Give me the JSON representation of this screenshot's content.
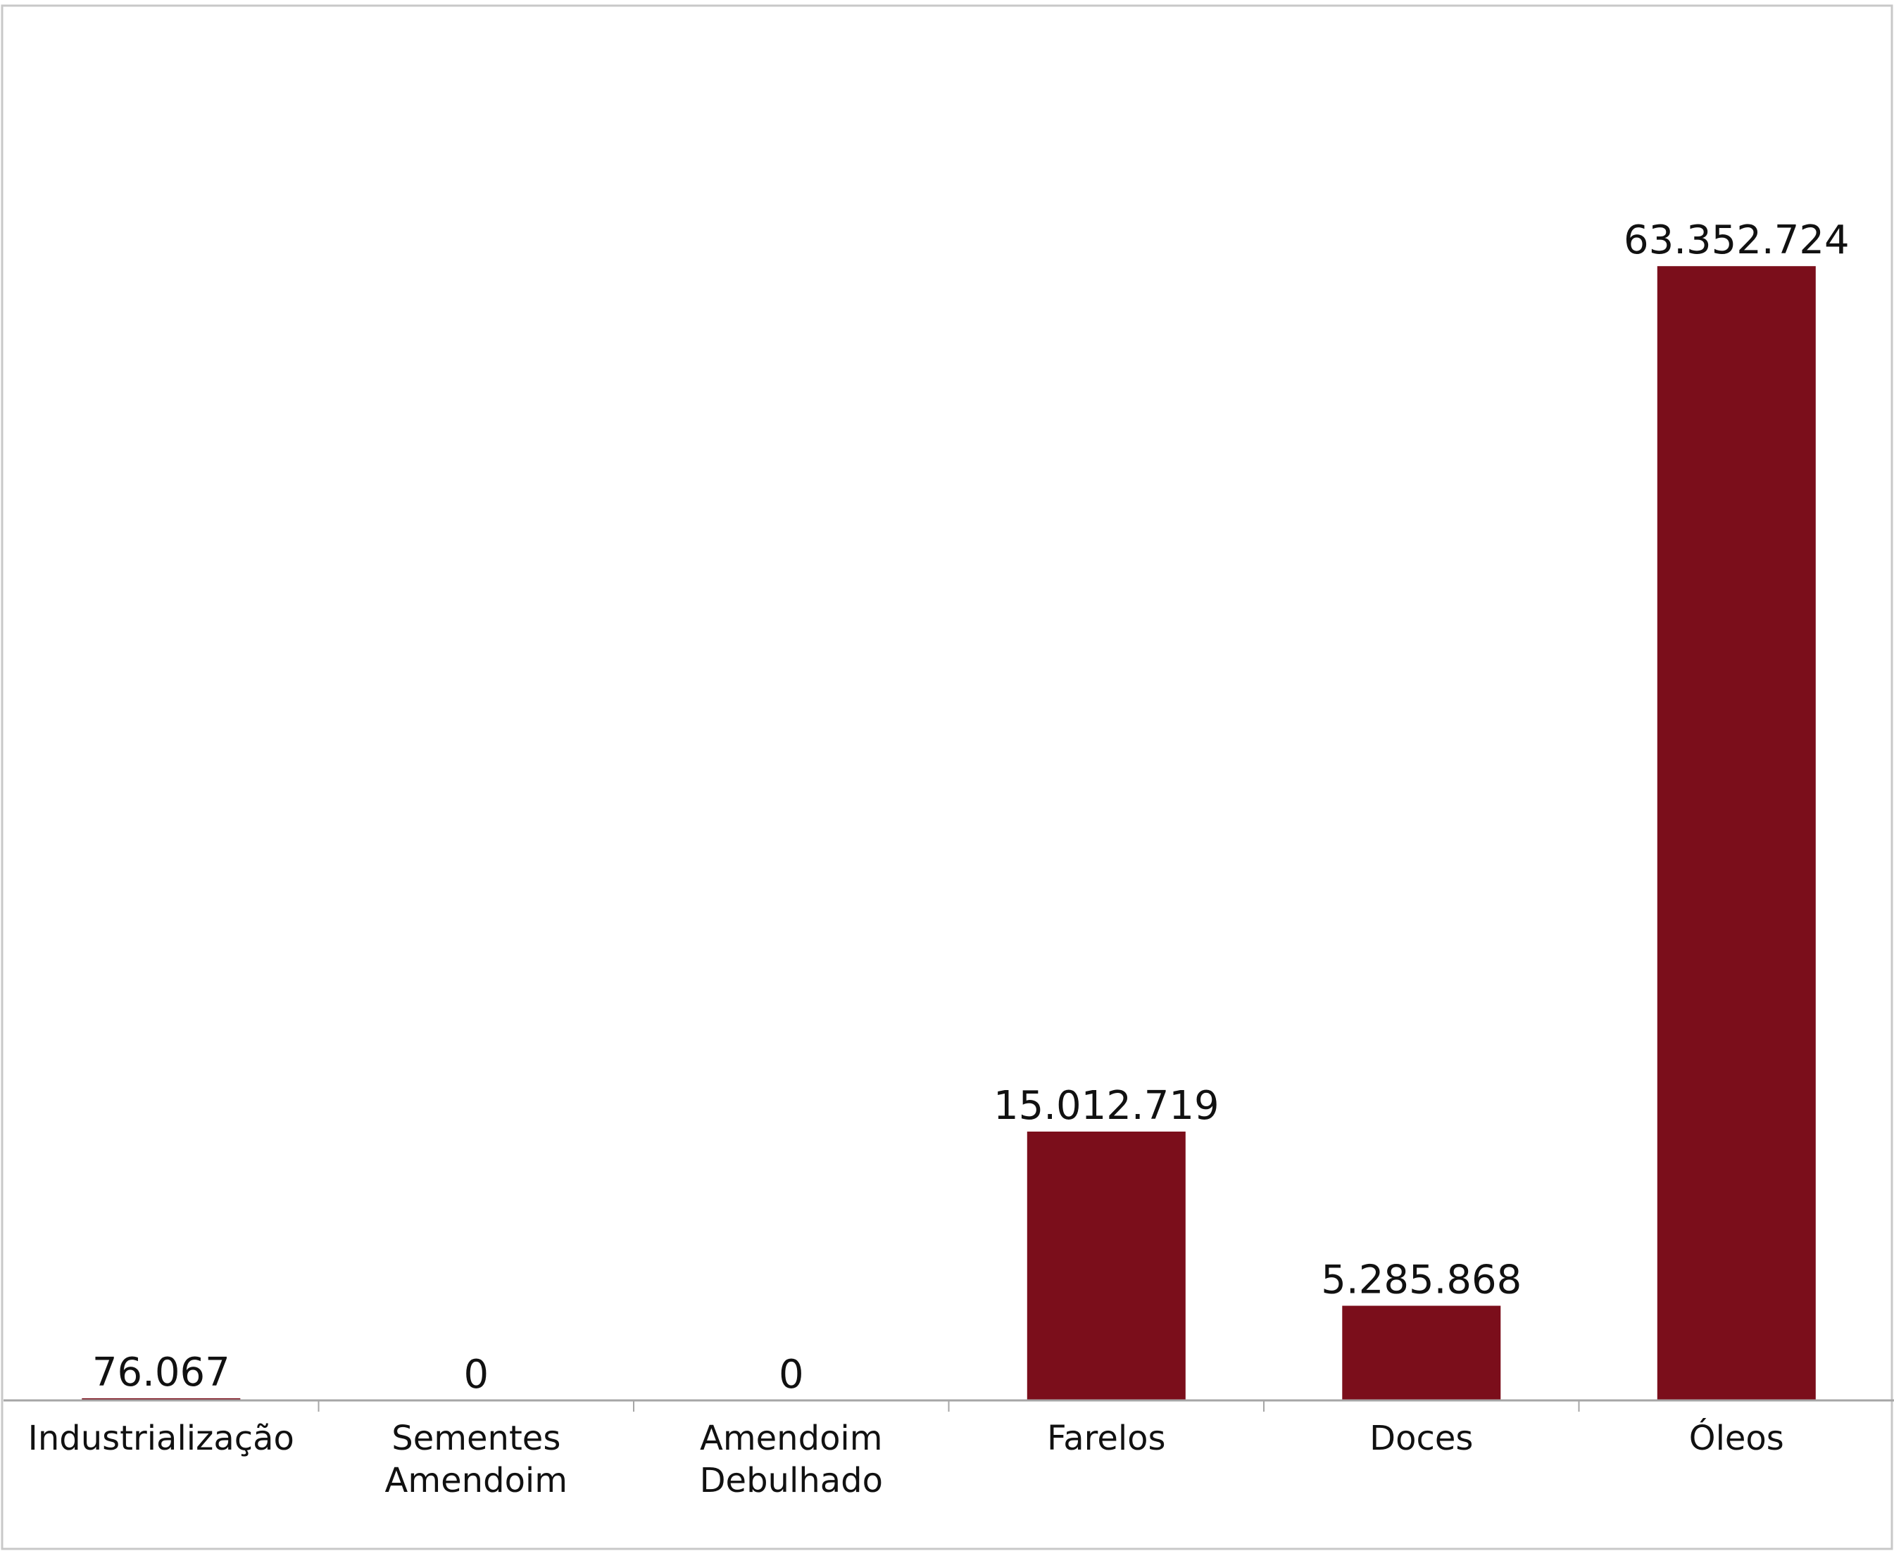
{
  "chart_data": {
    "type": "bar",
    "categories": [
      "Industrialização",
      "Sementes Amendoim",
      "Amendoim Debulhado",
      "Farelos",
      "Doces",
      "Óleos"
    ],
    "category_lines": [
      [
        "Industrialização"
      ],
      [
        "Sementes",
        "Amendoim"
      ],
      [
        "Amendoim",
        "Debulhado"
      ],
      [
        "Farelos"
      ],
      [
        "Doces"
      ],
      [
        "Óleos"
      ]
    ],
    "values": [
      76067,
      0,
      0,
      15012719,
      5285868,
      63352724
    ],
    "data_labels": [
      "76.067",
      "0",
      "0",
      "15.012.719",
      "5.285.868",
      "63.352.724"
    ],
    "title": "",
    "xlabel": "",
    "ylabel": "",
    "ylim": [
      0,
      73500000
    ],
    "grid": false,
    "legend": "none",
    "colors": {
      "bar": "#7B0E1B",
      "axis": "#a6a6a6",
      "text": "#111111"
    }
  }
}
